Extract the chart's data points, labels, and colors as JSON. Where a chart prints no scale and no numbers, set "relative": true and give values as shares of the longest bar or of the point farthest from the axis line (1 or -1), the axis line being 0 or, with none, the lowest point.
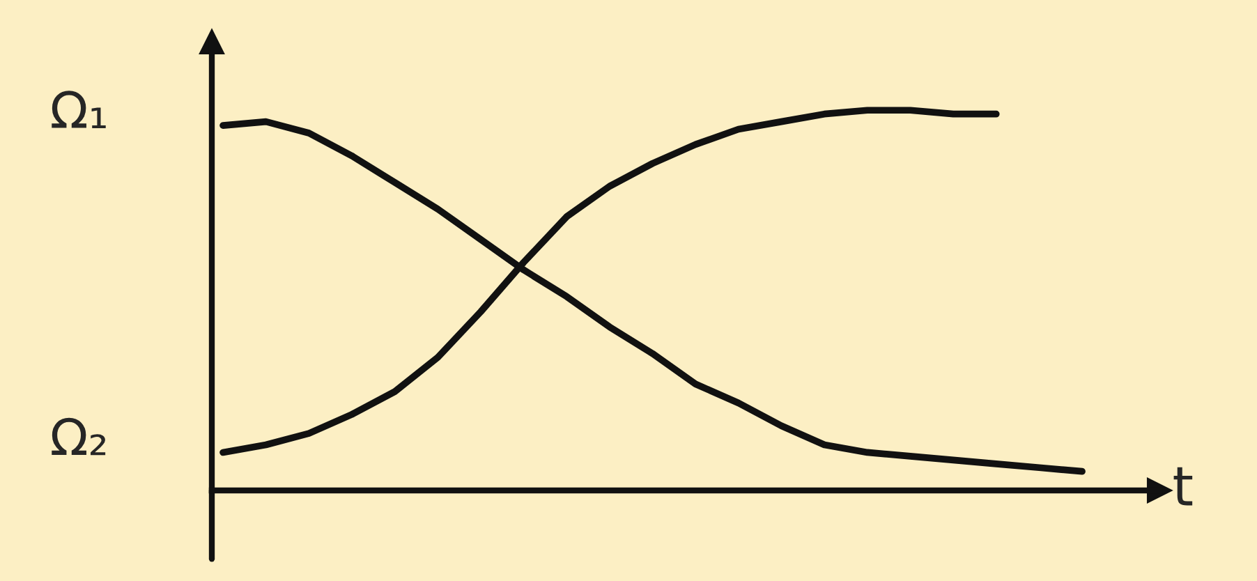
{
  "chart_data": {
    "type": "line",
    "xlabel": "t",
    "categories": [
      null,
      null,
      null,
      null,
      null,
      null,
      null,
      null,
      null,
      null,
      null,
      null,
      null,
      null,
      null,
      null,
      null,
      null,
      null,
      null,
      null
    ],
    "series": [
      {
        "color": "#111111",
        "values": [
          0.96,
          0.97,
          0.94,
          0.88,
          0.81,
          0.74,
          0.66,
          0.58,
          0.51,
          0.43,
          0.36,
          0.28,
          0.23,
          0.17,
          0.12,
          0.1,
          0.09,
          0.08,
          0.07,
          0.06,
          0.05
        ]
      },
      {
        "color": "#111111",
        "values": [
          0.1,
          0.12,
          0.15,
          0.2,
          0.26,
          0.35,
          0.47,
          0.6,
          0.72,
          0.8,
          0.86,
          0.91,
          0.95,
          0.97,
          0.99,
          1.0,
          1.0,
          0.99,
          0.99,
          null,
          null
        ]
      }
    ],
    "relative": true,
    "annotations": [
      "Ω₁",
      "Ω₂"
    ],
    "legend": false
  }
}
